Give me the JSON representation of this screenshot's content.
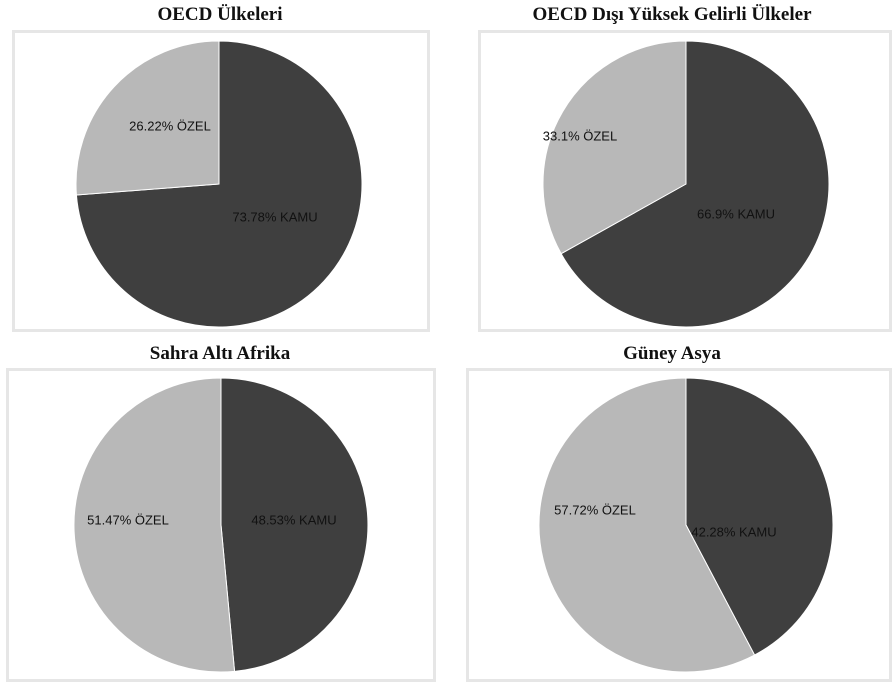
{
  "chart_data": [
    {
      "type": "pie",
      "title": "OECD Ülkeleri",
      "slices": [
        {
          "label": "73.78% KAMU",
          "value": 73.78,
          "color": "#3f3f3f"
        },
        {
          "label": "26.22% ÖZEL",
          "value": 26.22,
          "color": "#b8b8b8"
        }
      ]
    },
    {
      "type": "pie",
      "title": "OECD Dışı Yüksek Gelirli Ülkeler",
      "slices": [
        {
          "label": "66.9% KAMU",
          "value": 66.9,
          "color": "#3f3f3f"
        },
        {
          "label": "33.1% ÖZEL",
          "value": 33.1,
          "color": "#b8b8b8"
        }
      ]
    },
    {
      "type": "pie",
      "title": "Sahra Altı Afrika",
      "slices": [
        {
          "label": "48.53% KAMU",
          "value": 48.53,
          "color": "#3f3f3f"
        },
        {
          "label": "51.47% ÖZEL",
          "value": 51.47,
          "color": "#b8b8b8"
        }
      ]
    },
    {
      "type": "pie",
      "title": "Güney Asya",
      "slices": [
        {
          "label": "42.28% KAMU",
          "value": 42.28,
          "color": "#3f3f3f"
        },
        {
          "label": "57.72% ÖZEL",
          "value": 57.72,
          "color": "#b8b8b8"
        }
      ]
    }
  ]
}
